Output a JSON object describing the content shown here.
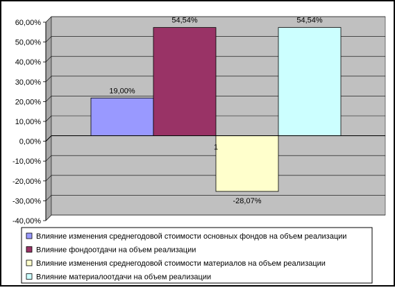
{
  "chart_data": {
    "type": "bar",
    "categories": [
      "1"
    ],
    "series": [
      {
        "name": "Влияние изменения среднегодовой стоимости основных фондов на объем реализации",
        "values": [
          19.0
        ],
        "label": "19,00%",
        "color": "#9999ff"
      },
      {
        "name": "Влияние фондоотдачи на объем реализации",
        "values": [
          54.54
        ],
        "label": "54,54%",
        "color": "#993366"
      },
      {
        "name": "Влияние изменения среднегодовой стоимости материалов на объем реализации",
        "values": [
          -28.07
        ],
        "label": "-28,07%",
        "color": "#ffffcc"
      },
      {
        "name": "Влияние материалоотдачи на объем реализации",
        "values": [
          54.54
        ],
        "label": "54,54%",
        "color": "#ccffff"
      }
    ],
    "yticks": [
      60,
      50,
      40,
      30,
      20,
      10,
      0,
      -10,
      -20,
      -30,
      -40
    ],
    "ytick_labels": [
      "60,00%",
      "50,00%",
      "40,00%",
      "30,00%",
      "20,00%",
      "10,00%",
      "0,00%",
      "-10,00%",
      "-20,00%",
      "-30,00%",
      "-40,00%"
    ],
    "ylim": [
      -40,
      60
    ],
    "grid": true,
    "plot_background": "#c0c0c0",
    "legend_position": "bottom"
  }
}
